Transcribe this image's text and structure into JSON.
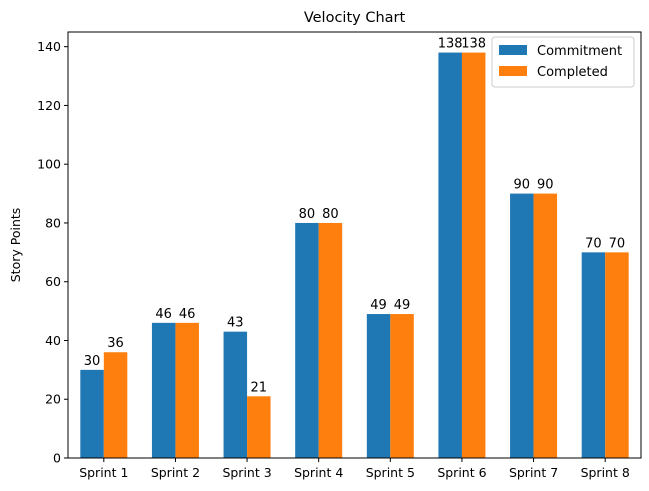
{
  "chart_data": {
    "type": "bar",
    "title": "Velocity Chart",
    "xlabel": "",
    "ylabel": "Story Points",
    "categories": [
      "Sprint 1",
      "Sprint 2",
      "Sprint 3",
      "Sprint 4",
      "Sprint 5",
      "Sprint 6",
      "Sprint 7",
      "Sprint 8"
    ],
    "series": [
      {
        "name": "Commitment",
        "color": "#1f77b4",
        "values": [
          30,
          46,
          43,
          80,
          49,
          138,
          90,
          70
        ]
      },
      {
        "name": "Completed",
        "color": "#ff7f0e",
        "values": [
          36,
          46,
          21,
          80,
          49,
          138,
          90,
          70
        ]
      }
    ],
    "ylim": [
      0,
      145
    ],
    "yticks": [
      0,
      20,
      40,
      60,
      80,
      100,
      120,
      140
    ],
    "grid": false,
    "legend_position": "top-right",
    "data_labels": true
  }
}
